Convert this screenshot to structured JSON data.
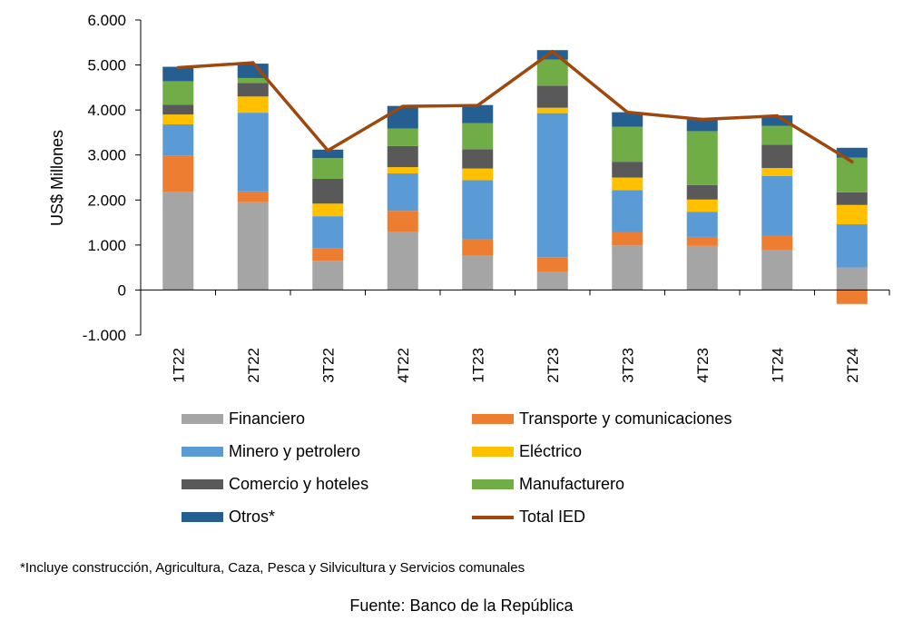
{
  "chart_data": {
    "type": "bar",
    "stacked": true,
    "ylabel": "US$ Millones",
    "xlabel": "",
    "ylim": [
      -1000,
      6000
    ],
    "yticks": [
      -1000,
      0,
      1000,
      2000,
      3000,
      4000,
      5000,
      6000
    ],
    "ytick_labels": [
      "-1.000",
      "0",
      "1.000",
      "2.000",
      "3.000",
      "4.000",
      "5.000",
      "6.000"
    ],
    "categories": [
      "1T22",
      "2T22",
      "3T22",
      "4T22",
      "1T23",
      "2T23",
      "3T23",
      "4T23",
      "1T24",
      "2T24"
    ],
    "series": [
      {
        "name": "Financiero",
        "color": "#a5a5a5",
        "values": [
          2180,
          1950,
          650,
          1300,
          760,
          400,
          990,
          980,
          880,
          500
        ]
      },
      {
        "name": "Transporte y comunicaciones",
        "color": "#ed7d31",
        "values": [
          800,
          240,
          270,
          460,
          360,
          330,
          290,
          200,
          320,
          -310
        ]
      },
      {
        "name": "Minero y petrolero",
        "color": "#5b9bd5",
        "values": [
          700,
          1750,
          720,
          830,
          1320,
          3200,
          940,
          560,
          1330,
          960
        ]
      },
      {
        "name": "Eléctrico",
        "color": "#ffc000",
        "values": [
          220,
          360,
          280,
          140,
          260,
          120,
          280,
          270,
          180,
          430
        ]
      },
      {
        "name": "Comercio y hoteles",
        "color": "#595959",
        "values": [
          220,
          300,
          550,
          470,
          430,
          490,
          350,
          320,
          520,
          280
        ]
      },
      {
        "name": "Manufacturero",
        "color": "#70ad47",
        "values": [
          520,
          110,
          460,
          390,
          580,
          580,
          780,
          1200,
          420,
          770
        ]
      },
      {
        "name": "Otros*",
        "color": "#255e91",
        "values": [
          320,
          320,
          190,
          500,
          400,
          210,
          320,
          260,
          230,
          220
        ]
      }
    ],
    "line_series": {
      "name": "Total IED",
      "color": "#9e480e",
      "values": [
        4940,
        5050,
        3100,
        4080,
        4100,
        5300,
        3950,
        3790,
        3870,
        2850
      ]
    }
  },
  "footnote": "*Incluye construcción, Agricultura, Caza, Pesca y Silvicultura y Servicios comunales",
  "source": "Fuente: Banco de la República"
}
